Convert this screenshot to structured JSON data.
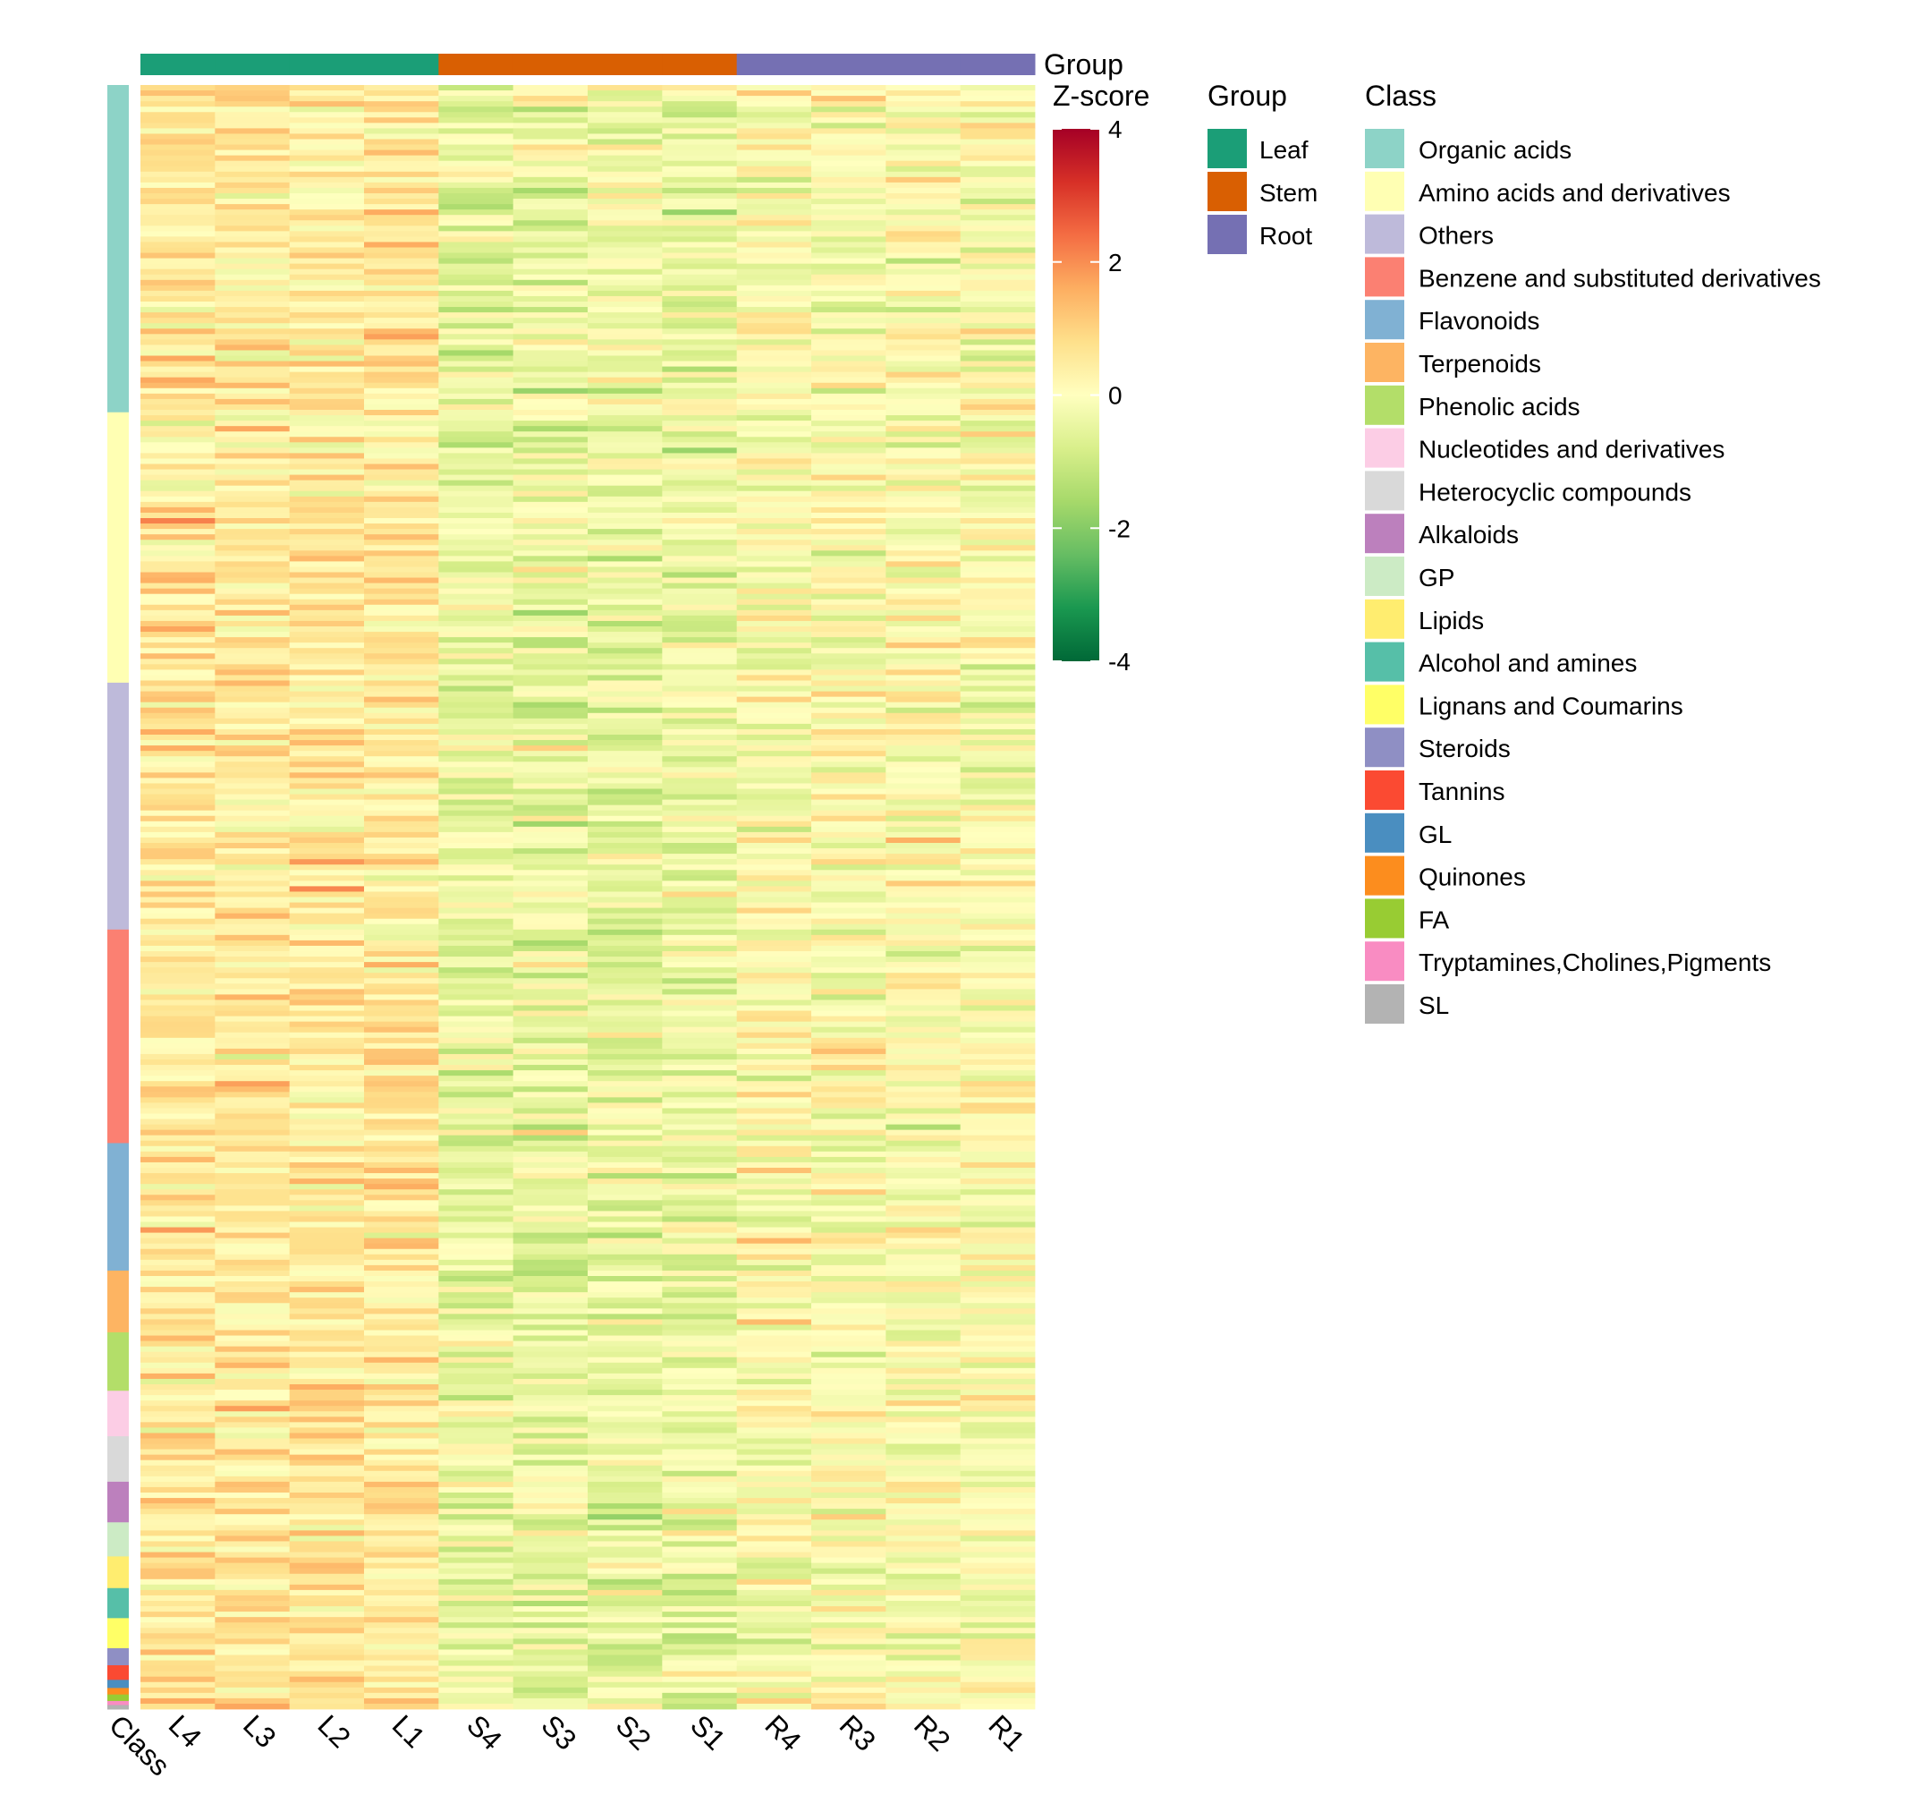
{
  "chart_data": {
    "type": "heatmap",
    "columns": [
      "L4",
      "L3",
      "L2",
      "L1",
      "S4",
      "S3",
      "S2",
      "S1",
      "R4",
      "R3",
      "R2",
      "R1"
    ],
    "column_groups": [
      "Leaf",
      "Leaf",
      "Leaf",
      "Leaf",
      "Stem",
      "Stem",
      "Stem",
      "Stem",
      "Root",
      "Root",
      "Root",
      "Root"
    ],
    "group_track_label": "Group",
    "row_track_label": "Class",
    "colorbar": {
      "title": "Z-score",
      "range": [
        -4,
        4
      ],
      "ticks": [
        "4",
        "2",
        "0",
        "-2",
        "-4"
      ],
      "tick_values": [
        4,
        2,
        0,
        -2,
        -4
      ],
      "colors": [
        "#006837",
        "#1A9850",
        "#66BD63",
        "#A6D96A",
        "#D9EF8B",
        "#FFFFBF",
        "#FEE08B",
        "#FDAE61",
        "#F46D43",
        "#D73027",
        "#A50026"
      ]
    },
    "group_legend": {
      "title": "Group",
      "items": [
        {
          "name": "Leaf",
          "color": "#1B9E77"
        },
        {
          "name": "Stem",
          "color": "#D95F02"
        },
        {
          "name": "Root",
          "color": "#7570B3"
        }
      ]
    },
    "class_legend": {
      "title": "Class",
      "items": [
        {
          "name": "Organic acids",
          "color": "#8DD3C7",
          "fraction": 0.2015
        },
        {
          "name": "Amino acids and derivatives",
          "color": "#FFFFB3",
          "fraction": 0.1665
        },
        {
          "name": "Others",
          "color": "#BEBADA",
          "fraction": 0.152
        },
        {
          "name": "Benzene and substituted derivatives",
          "color": "#FB8072",
          "fraction": 0.1315
        },
        {
          "name": "Flavonoids",
          "color": "#80B1D3",
          "fraction": 0.0785
        },
        {
          "name": "Terpenoids",
          "color": "#FDB462",
          "fraction": 0.038
        },
        {
          "name": "Phenolic acids",
          "color": "#B3DE69",
          "fraction": 0.036
        },
        {
          "name": "Nucleotides and derivatives",
          "color": "#FCCDE5",
          "fraction": 0.028
        },
        {
          "name": "Heterocyclic compounds",
          "color": "#D9D9D9",
          "fraction": 0.028
        },
        {
          "name": "Alkaloids",
          "color": "#BC80BD",
          "fraction": 0.025
        },
        {
          "name": "GP",
          "color": "#CCEBC5",
          "fraction": 0.021
        },
        {
          "name": "Lipids",
          "color": "#FFED6F",
          "fraction": 0.0195
        },
        {
          "name": "Alcohol and amines",
          "color": "#56BFA8",
          "fraction": 0.0185
        },
        {
          "name": "Lignans and Coumarins",
          "color": "#FFFF66",
          "fraction": 0.0185
        },
        {
          "name": "Steroids",
          "color": "#8F8FC4",
          "fraction": 0.0105
        },
        {
          "name": "Tannins",
          "color": "#FB4A32",
          "fraction": 0.009
        },
        {
          "name": "GL",
          "color": "#4A8EC0",
          "fraction": 0.005
        },
        {
          "name": "Quinones",
          "color": "#FC8D1E",
          "fraction": 0.004
        },
        {
          "name": "FA",
          "color": "#98CC33",
          "fraction": 0.004
        },
        {
          "name": "Tryptamines,Cholines,Pigments",
          "color": "#F98CC2",
          "fraction": 0.0025
        },
        {
          "name": "SL",
          "color": "#B3B3B3",
          "fraction": 0.0025
        }
      ]
    },
    "group_column_means": [
      0.55,
      0.55,
      0.55,
      0.55,
      -0.45,
      -0.45,
      -0.45,
      -0.45,
      0.0,
      0.0,
      0.0,
      0.0
    ]
  }
}
